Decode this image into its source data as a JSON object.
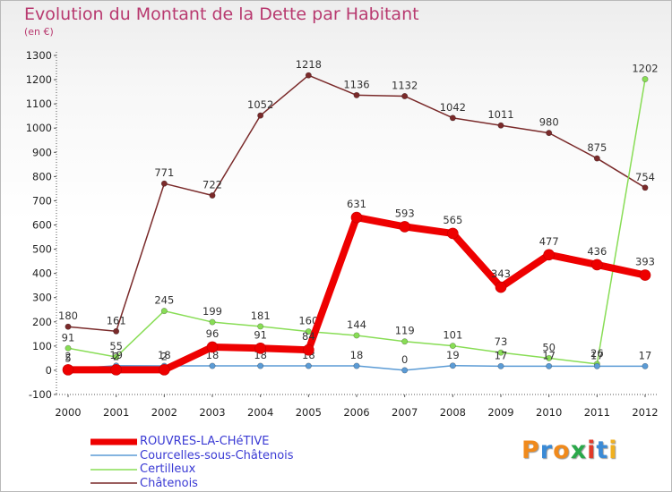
{
  "title": "Evolution du Montant de la Dette par Habitant",
  "subtitle": "(en €)",
  "logo_text": "Proxiti",
  "logo_colors": [
    "#f08a1c",
    "#3a8ad6",
    "#f08a1c",
    "#2aa84a",
    "#e03a2a",
    "#3a8ad6",
    "#f0b020"
  ],
  "chart_data": {
    "type": "line",
    "x": [
      "2000",
      "2001",
      "2002",
      "2003",
      "2004",
      "2005",
      "2006",
      "2007",
      "2008",
      "2009",
      "2010",
      "2011",
      "2012"
    ],
    "ylim": [
      -100,
      1300
    ],
    "yticks": [
      -100,
      0,
      100,
      200,
      300,
      400,
      500,
      600,
      700,
      800,
      900,
      1000,
      1100,
      1200,
      1300
    ],
    "grid": false,
    "legend_position": "bottom-left",
    "series": [
      {
        "name": "ROUVRES-LA-CHéTIVE",
        "color": "#ee0000",
        "values": [
          2,
          2,
          2,
          96,
          91,
          84,
          631,
          593,
          565,
          343,
          477,
          436,
          393
        ],
        "labels": [
          "2",
          "2",
          "2",
          "96",
          "91",
          "84",
          "631",
          "593",
          "565",
          "343",
          "477",
          "436",
          "393"
        ]
      },
      {
        "name": "Courcelles-sous-Châtenois",
        "color": "#5b9bd5",
        "values": [
          5,
          19,
          18,
          18,
          18,
          18,
          18,
          0,
          19,
          17,
          17,
          17,
          17
        ],
        "labels": [
          "5",
          "19",
          "18",
          "18",
          "18",
          "18",
          "18",
          "0",
          "19",
          "17",
          "17",
          "17",
          "17"
        ]
      },
      {
        "name": "Certilleux",
        "color": "#88dd55",
        "values": [
          91,
          55,
          245,
          199,
          181,
          160,
          144,
          119,
          101,
          73,
          50,
          26,
          1202
        ],
        "labels": [
          "91",
          "55",
          "245",
          "199",
          "181",
          "160",
          "144",
          "119",
          "101",
          "73",
          "50",
          "26",
          "1202"
        ]
      },
      {
        "name": "Châtenois",
        "color": "#7a2a2a",
        "values": [
          180,
          161,
          771,
          722,
          1052,
          1218,
          1136,
          1132,
          1042,
          1011,
          980,
          875,
          754
        ],
        "labels": [
          "180",
          "161",
          "771",
          "722",
          "1052",
          "1218",
          "1136",
          "1132",
          "1042",
          "1011",
          "980",
          "875",
          "754"
        ]
      }
    ]
  }
}
